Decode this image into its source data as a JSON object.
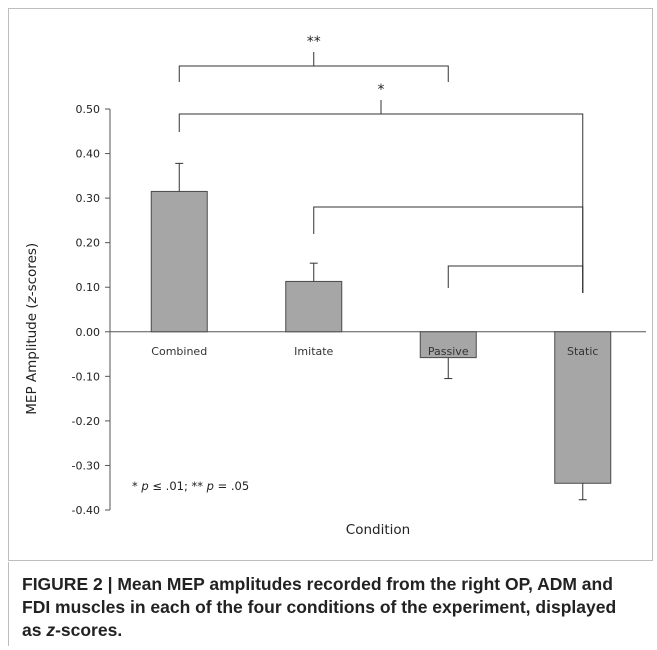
{
  "chart_data": {
    "type": "bar",
    "categories": [
      "Combined",
      "Imitate",
      "Passive",
      "Static"
    ],
    "values": [
      0.315,
      0.113,
      -0.058,
      -0.34
    ],
    "errors": [
      0.063,
      0.041,
      0.047,
      0.037
    ],
    "xlabel": "Condition",
    "ylabel_parts": [
      "MEP Amplitude (",
      "z",
      "-scores)"
    ],
    "ylim": [
      -0.4,
      0.5
    ],
    "yticks": [
      "0.50",
      "0.40",
      "0.30",
      "0.20",
      "0.10",
      "0.00",
      "-0.10",
      "-0.20",
      "-0.30",
      "-0.40"
    ],
    "bar_color": "#a6a6a6",
    "significance": [
      {
        "mark": "**",
        "from": "Combined",
        "to": "Passive"
      },
      {
        "mark": "*",
        "from": "Combined",
        "to": "Static"
      },
      {
        "mark": "",
        "from": "Imitate",
        "to": "Static"
      },
      {
        "mark": "",
        "from": "Passive",
        "to": "Static"
      }
    ],
    "note_parts": [
      "* ",
      "p",
      " ≤ .01; ** ",
      "p",
      " = .05"
    ],
    "grid": false,
    "legend": "none"
  },
  "caption": {
    "prefix": "FIGURE 2 | Mean MEP amplitudes recorded from the right OP, ADM and FDI muscles in each of the four conditions of the experiment, displayed as ",
    "italic": "z",
    "suffix": "-scores."
  }
}
